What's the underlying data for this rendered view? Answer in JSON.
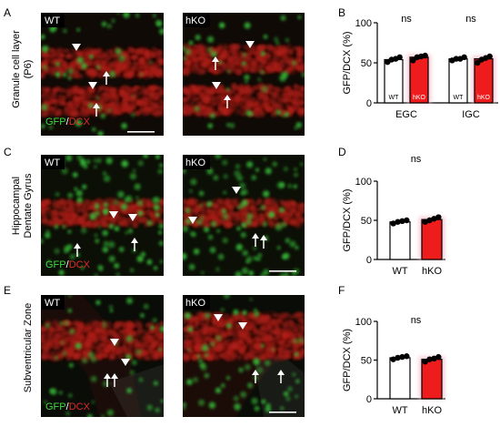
{
  "panels": {
    "A": "A",
    "B": "B",
    "C": "C",
    "D": "D",
    "E": "E",
    "F": "F"
  },
  "row_labels": {
    "A": [
      "Granule cell layer",
      "(P6)"
    ],
    "C": [
      "Hippocampal",
      "Dentate Gyrus"
    ],
    "E": [
      "Subventricular Zone"
    ]
  },
  "micrographs": {
    "wt_label": "WT",
    "hko_label": "hKO",
    "stain_gfp": "GFP",
    "stain_sep": "/",
    "stain_dcx": "DCX",
    "colors": {
      "gfp": "#3ddc3d",
      "dcx": "#e02a2a"
    }
  },
  "colors": {
    "wt_fill": "#ffffff",
    "hko_fill": "#ee1c1c",
    "hko_glow": "#f6c9d2",
    "points": "#000000"
  },
  "chart_data": [
    {
      "panel": "B",
      "type": "bar",
      "ylabel": "GFP/DCX (%)",
      "ylim": [
        0,
        100
      ],
      "yticks": [
        0,
        50,
        100
      ],
      "groups": [
        "EGC",
        "IGC"
      ],
      "series": [
        {
          "name": "WT",
          "values": [
            54,
            55
          ],
          "points": [
            [
              51,
              54,
              55,
              57
            ],
            [
              53,
              55,
              55,
              57
            ]
          ]
        },
        {
          "name": "hKO",
          "values": [
            57,
            55
          ],
          "points": [
            [
              53,
              57,
              58,
              59
            ],
            [
              50,
              54,
              56,
              58
            ]
          ]
        }
      ],
      "annotations": [
        "ns",
        "ns"
      ]
    },
    {
      "panel": "D",
      "type": "bar",
      "ylabel": "GFP/DCX (%)",
      "ylim": [
        0,
        100
      ],
      "yticks": [
        0,
        50,
        100
      ],
      "categories": [
        "WT",
        "hKO"
      ],
      "values": [
        48,
        51
      ],
      "points": [
        [
          46,
          48,
          49,
          50
        ],
        [
          48,
          50,
          52,
          54
        ]
      ],
      "annotations": [
        "ns"
      ]
    },
    {
      "panel": "F",
      "type": "bar",
      "ylabel": "GFP/DCX (%)",
      "ylim": [
        0,
        100
      ],
      "yticks": [
        0,
        50,
        100
      ],
      "categories": [
        "WT",
        "hKO"
      ],
      "values": [
        53,
        51
      ],
      "points": [
        [
          51,
          53,
          54,
          55
        ],
        [
          48,
          51,
          52,
          54
        ]
      ],
      "annotations": [
        "ns"
      ]
    }
  ]
}
